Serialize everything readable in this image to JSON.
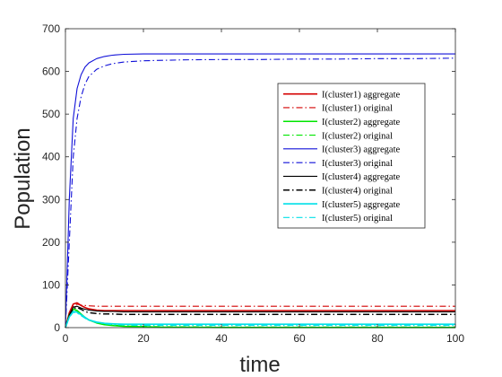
{
  "chart_data": {
    "type": "line",
    "title": "",
    "xlabel": "time",
    "ylabel": "Population",
    "xlim": [
      0,
      100
    ],
    "ylim": [
      0,
      700
    ],
    "xticks": [
      0,
      20,
      40,
      60,
      80,
      100
    ],
    "yticks": [
      0,
      100,
      200,
      300,
      400,
      500,
      600,
      700
    ],
    "grid": false,
    "legend_position": "right",
    "x": [
      0,
      1,
      2,
      3,
      4,
      5,
      6,
      8,
      10,
      12,
      15,
      20,
      25,
      30,
      40,
      50,
      60,
      70,
      80,
      90,
      100
    ],
    "series": [
      {
        "name": "I(cluster1) aggregate",
        "color": "#d40000",
        "dash": "solid",
        "width": 1.6,
        "values": [
          0,
          35,
          55,
          58,
          52,
          47,
          44,
          41,
          40,
          40,
          40,
          40,
          40,
          40,
          40,
          40,
          40,
          40,
          40,
          40,
          40
        ]
      },
      {
        "name": "I(cluster1) original",
        "color": "#d40000",
        "dash": "dashdot",
        "width": 1.1,
        "values": [
          0,
          32,
          50,
          55,
          53,
          52,
          51,
          50,
          50,
          50,
          50,
          50,
          50,
          50,
          50,
          50,
          50,
          50,
          50,
          50,
          50
        ]
      },
      {
        "name": "I(cluster2) aggregate",
        "color": "#00e600",
        "dash": "solid",
        "width": 1.6,
        "values": [
          0,
          30,
          44,
          40,
          32,
          24,
          18,
          11,
          7,
          5,
          3,
          2,
          1,
          1,
          0.5,
          0.5,
          0.5,
          0.5,
          0.5,
          0.5,
          0.5
        ]
      },
      {
        "name": "I(cluster2) original",
        "color": "#00e600",
        "dash": "dashdot",
        "width": 1.1,
        "values": [
          0,
          28,
          42,
          39,
          31,
          24,
          18,
          12,
          8,
          6,
          4,
          3,
          2,
          2,
          1.5,
          1.5,
          1.5,
          1.5,
          1.5,
          1.5,
          1.5
        ]
      },
      {
        "name": "I(cluster3) aggregate",
        "color": "#1010d8",
        "dash": "solid",
        "width": 1.1,
        "values": [
          0,
          300,
          490,
          560,
          592,
          610,
          620,
          630,
          635,
          638,
          640,
          641,
          641,
          641,
          641,
          641,
          641,
          641,
          641,
          641,
          641
        ]
      },
      {
        "name": "I(cluster3) original",
        "color": "#1010d8",
        "dash": "dashdot",
        "width": 1.1,
        "values": [
          0,
          200,
          400,
          490,
          540,
          570,
          588,
          605,
          613,
          618,
          622,
          625,
          626,
          627,
          628,
          628,
          629,
          629,
          630,
          630,
          631
        ]
      },
      {
        "name": "I(cluster4) aggregate",
        "color": "#000000",
        "dash": "solid",
        "width": 1.1,
        "values": [
          0,
          30,
          48,
          50,
          46,
          43,
          41,
          39,
          38,
          38,
          37,
          37,
          37,
          37,
          37,
          37,
          37,
          37,
          37,
          37,
          37
        ]
      },
      {
        "name": "I(cluster4) original",
        "color": "#000000",
        "dash": "dashdot",
        "width": 1.5,
        "values": [
          0,
          28,
          45,
          47,
          43,
          38,
          35,
          33,
          32,
          32,
          31,
          31,
          31,
          31,
          31,
          31,
          31,
          31,
          31,
          31,
          31
        ]
      },
      {
        "name": "I(cluster5) aggregate",
        "color": "#00e0e8",
        "dash": "solid",
        "width": 1.6,
        "values": [
          0,
          25,
          38,
          36,
          30,
          24,
          18,
          13,
          10,
          9,
          8,
          8,
          8,
          8,
          8,
          8,
          8,
          8,
          8,
          8,
          8
        ]
      },
      {
        "name": "I(cluster5) original",
        "color": "#00e0e8",
        "dash": "dashdot",
        "width": 1.1,
        "values": [
          0,
          24,
          36,
          34,
          28,
          22,
          17,
          12,
          9,
          7,
          6,
          5,
          5,
          5,
          5,
          5,
          5,
          5,
          5,
          5,
          5
        ]
      }
    ]
  }
}
